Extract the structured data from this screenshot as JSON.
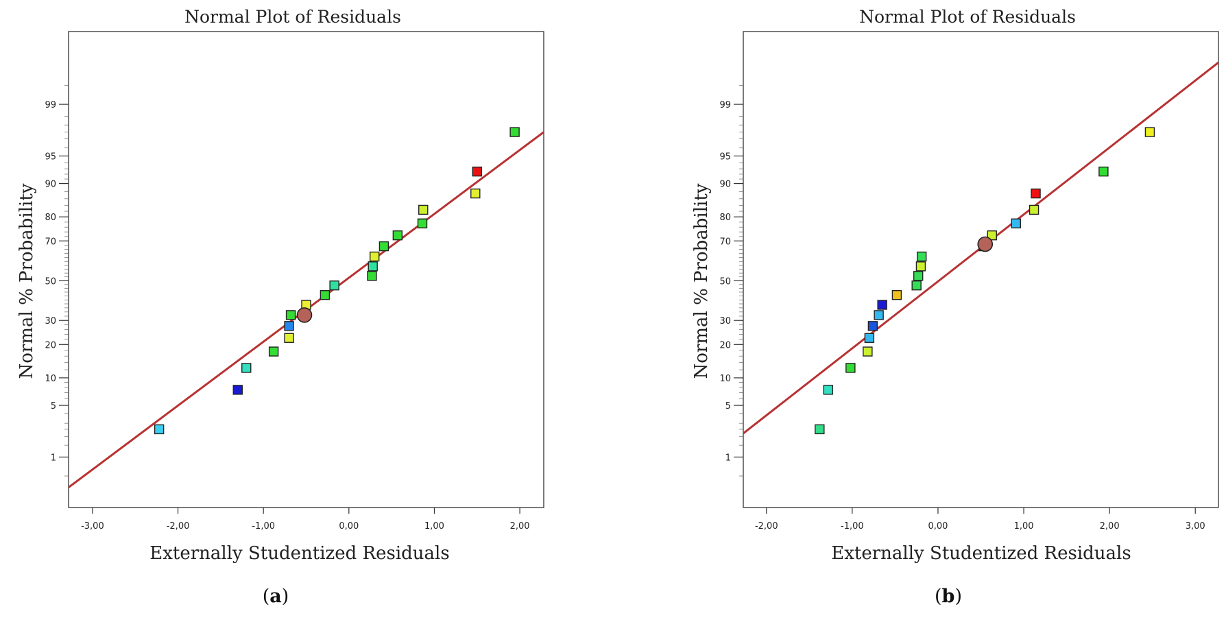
{
  "chart_data": [
    {
      "type": "scatter",
      "title": "Normal Plot of Residuals",
      "xlabel": "Externally Studentized Residuals",
      "ylabel": "Normal % Probability",
      "subfigure_label": "a",
      "xlim": [
        -3.28,
        2.28
      ],
      "x_ticks": [
        -3.0,
        -2.0,
        -1.0,
        0.0,
        1.0,
        2.0
      ],
      "x_tick_labels": [
        "-3,00",
        "-2,00",
        "-1,00",
        "0,00",
        "1,00",
        "2,00"
      ],
      "y_scale": "normal-probability",
      "y_ticks": [
        1,
        5,
        10,
        20,
        30,
        50,
        70,
        80,
        90,
        95,
        99
      ],
      "y_tick_labels": [
        "1",
        "5",
        "10",
        "20",
        "30",
        "50",
        "70",
        "80",
        "90",
        "95",
        "99"
      ],
      "fit_line": {
        "x": [
          -3.28,
          2.28
        ],
        "prob": [
          0.32,
          97.5
        ],
        "color": "#b83232"
      },
      "points": [
        {
          "x": -2.22,
          "prob": 2.5,
          "color": "#3ad0f0"
        },
        {
          "x": -1.3,
          "prob": 7.5,
          "color": "#1a1ad0"
        },
        {
          "x": -1.2,
          "prob": 12.5,
          "color": "#30e0c0"
        },
        {
          "x": -0.88,
          "prob": 17.5,
          "color": "#33dd33"
        },
        {
          "x": -0.7,
          "prob": 22.5,
          "color": "#e0f030"
        },
        {
          "x": -0.7,
          "prob": 27.5,
          "color": "#2288ee"
        },
        {
          "x": -0.68,
          "prob": 32.5,
          "color": "#33dd33"
        },
        {
          "x": -0.5,
          "prob": 37.5,
          "color": "#ecf030"
        },
        {
          "x": -0.28,
          "prob": 42.5,
          "color": "#33dd33"
        },
        {
          "x": -0.17,
          "prob": 47.5,
          "color": "#30e0a0"
        },
        {
          "x": 0.27,
          "prob": 52.5,
          "color": "#33dd33"
        },
        {
          "x": 0.28,
          "prob": 57.5,
          "color": "#30e0a0"
        },
        {
          "x": 0.3,
          "prob": 62.5,
          "color": "#e0f030"
        },
        {
          "x": 0.41,
          "prob": 67.5,
          "color": "#33dd33"
        },
        {
          "x": 0.57,
          "prob": 72.5,
          "color": "#33dd33"
        },
        {
          "x": 0.86,
          "prob": 77.5,
          "color": "#33dd33"
        },
        {
          "x": 0.87,
          "prob": 82.5,
          "color": "#ccf030"
        },
        {
          "x": 1.48,
          "prob": 87.5,
          "color": "#e0f030"
        },
        {
          "x": 1.5,
          "prob": 92.5,
          "color": "#ee1111"
        },
        {
          "x": 1.94,
          "prob": 97.5,
          "color": "#33dd33"
        }
      ],
      "highlight": {
        "x": -0.52,
        "prob": 32.5,
        "color": "#b5635a"
      }
    },
    {
      "type": "scatter",
      "title": "Normal Plot of Residuals",
      "xlabel": "Externally Studentized Residuals",
      "ylabel": "Normal % Probability",
      "subfigure_label": "b",
      "xlim": [
        -2.27,
        3.27
      ],
      "x_ticks": [
        -2.0,
        -1.0,
        0.0,
        1.0,
        2.0,
        3.0
      ],
      "x_tick_labels": [
        "-2,00",
        "-1,00",
        "0,00",
        "1,00",
        "2,00",
        "3,00"
      ],
      "y_scale": "normal-probability",
      "y_ticks": [
        1,
        5,
        10,
        20,
        30,
        50,
        70,
        80,
        90,
        95,
        99
      ],
      "y_tick_labels": [
        "1",
        "5",
        "10",
        "20",
        "30",
        "50",
        "70",
        "80",
        "90",
        "95",
        "99"
      ],
      "fit_line": {
        "x": [
          -2.27,
          3.27
        ],
        "prob": [
          2.2,
          99.8
        ],
        "color": "#b83232"
      },
      "points": [
        {
          "x": -1.38,
          "prob": 2.5,
          "color": "#33dd88"
        },
        {
          "x": -1.28,
          "prob": 7.5,
          "color": "#30e0c0"
        },
        {
          "x": -1.02,
          "prob": 12.5,
          "color": "#33dd33"
        },
        {
          "x": -0.82,
          "prob": 17.5,
          "color": "#ccf030"
        },
        {
          "x": -0.8,
          "prob": 22.5,
          "color": "#33b8f0"
        },
        {
          "x": -0.76,
          "prob": 27.5,
          "color": "#1a55dd"
        },
        {
          "x": -0.69,
          "prob": 32.5,
          "color": "#33b8f0"
        },
        {
          "x": -0.65,
          "prob": 37.5,
          "color": "#1a1ad0"
        },
        {
          "x": -0.48,
          "prob": 42.5,
          "color": "#f0c020"
        },
        {
          "x": -0.25,
          "prob": 47.5,
          "color": "#33dd55"
        },
        {
          "x": -0.23,
          "prob": 52.5,
          "color": "#33dd55"
        },
        {
          "x": -0.2,
          "prob": 57.5,
          "color": "#ccf030"
        },
        {
          "x": -0.19,
          "prob": 62.5,
          "color": "#33dd55"
        },
        {
          "x": 0.53,
          "prob": 67.5,
          "color": "#33dd33"
        },
        {
          "x": 0.63,
          "prob": 72.5,
          "color": "#ccf030"
        },
        {
          "x": 0.91,
          "prob": 77.5,
          "color": "#33b8f0"
        },
        {
          "x": 1.12,
          "prob": 82.5,
          "color": "#ccf030"
        },
        {
          "x": 1.14,
          "prob": 87.5,
          "color": "#ee1111"
        },
        {
          "x": 1.93,
          "prob": 92.5,
          "color": "#33dd33"
        },
        {
          "x": 2.47,
          "prob": 97.5,
          "color": "#f0f020"
        }
      ],
      "highlight": {
        "x": 0.55,
        "prob": 68.5,
        "color": "#b5635a"
      }
    }
  ]
}
